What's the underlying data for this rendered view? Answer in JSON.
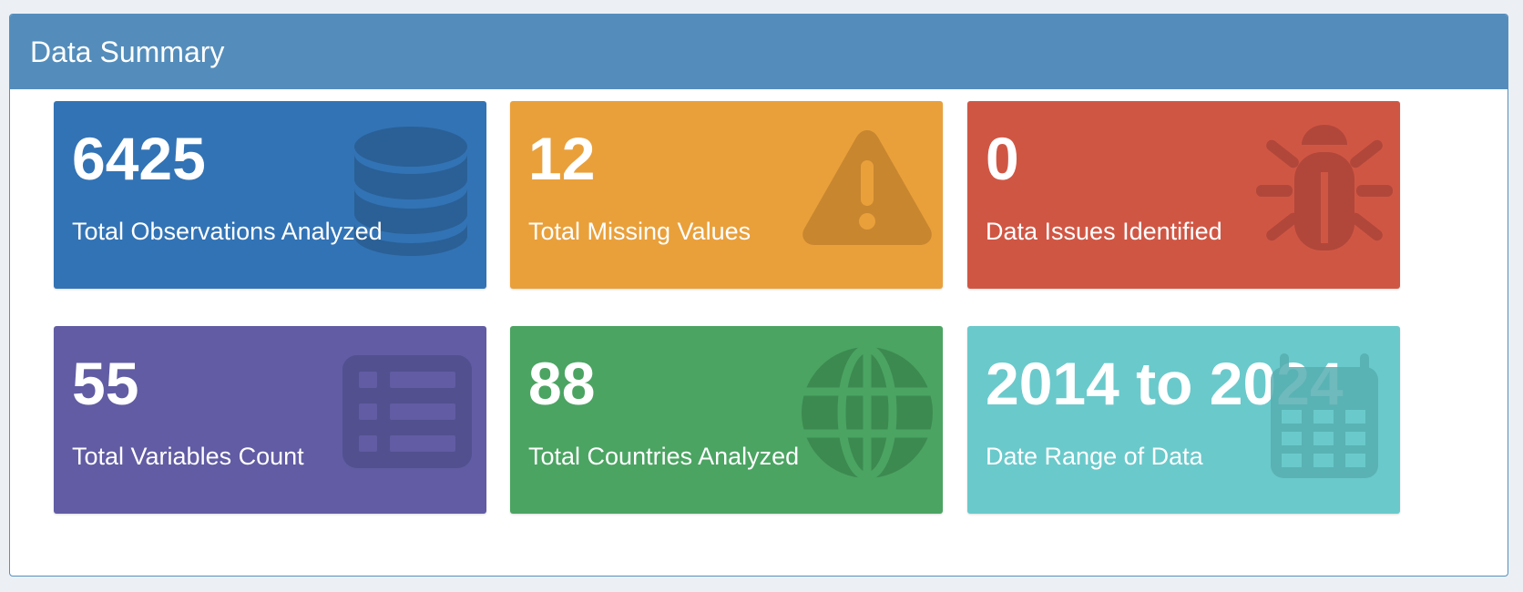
{
  "panel": {
    "title": "Data Summary",
    "header_color": "#548dbb"
  },
  "boxes": [
    {
      "value": "6425",
      "label": "Total Observations Analyzed",
      "icon": "database-icon",
      "color": "#3273b5"
    },
    {
      "value": "12",
      "label": "Total Missing Values",
      "icon": "warning-icon",
      "color": "#e9a03b"
    },
    {
      "value": "0",
      "label": "Data Issues Identified",
      "icon": "bug-icon",
      "color": "#d05644"
    },
    {
      "value": "55",
      "label": "Total Variables Count",
      "icon": "list-icon",
      "color": "#615ca3"
    },
    {
      "value": "88",
      "label": "Total Countries Analyzed",
      "icon": "globe-icon",
      "color": "#4ba462"
    },
    {
      "value": "2014 to 2024",
      "label": "Date Range of Data",
      "icon": "calendar-icon",
      "color": "#6ac9cb"
    }
  ]
}
